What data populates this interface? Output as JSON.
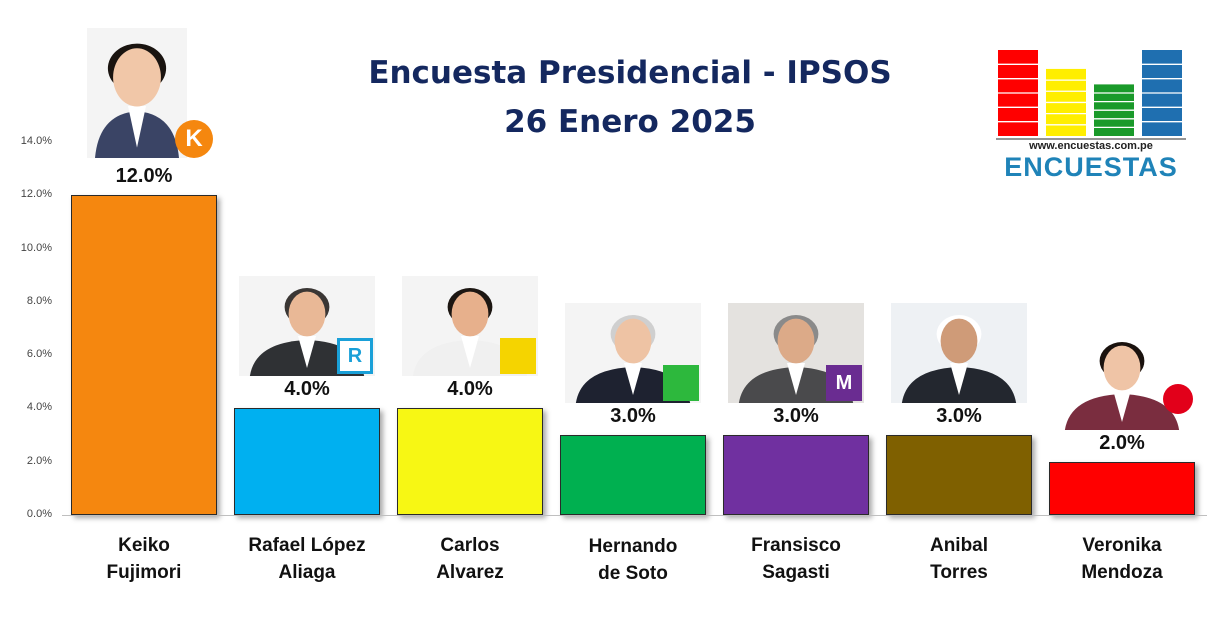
{
  "header": {
    "title_line1": "Encuesta Presidencial - IPSOS",
    "title_line2": "26  Enero 2025"
  },
  "logo": {
    "url": "www.encuestas.com.pe",
    "brand": "ENCUESTAS",
    "bar_colors": [
      "#ff0000",
      "#ffee00",
      "#1a9a2a",
      "#1f6fb0"
    ],
    "bar_levels": [
      1.0,
      0.78,
      0.6,
      1.0
    ]
  },
  "chart_data": {
    "type": "bar",
    "categories": [
      [
        "Keiko",
        "Fujimori"
      ],
      [
        "Rafael López",
        "Aliaga"
      ],
      [
        "Carlos",
        "Alvarez"
      ],
      [
        "Hernando",
        "de Soto"
      ],
      [
        "Fransisco",
        "Sagasti"
      ],
      [
        "Anibal",
        "Torres"
      ],
      [
        "Veronika",
        "Mendoza"
      ]
    ],
    "values": [
      12.0,
      4.0,
      4.0,
      3.0,
      3.0,
      3.0,
      2.0
    ],
    "value_labels": [
      "12.0%",
      "4.0%",
      "4.0%",
      "3.0%",
      "3.0%",
      "3.0%",
      "2.0%"
    ],
    "colors": [
      "#f5870f",
      "#00b0f0",
      "#f7f714",
      "#00b050",
      "#7030a0",
      "#7f6000",
      "#ff0000"
    ],
    "ylim": [
      0,
      14
    ],
    "yticks": [
      "0.0%",
      "2.0%",
      "4.0%",
      "6.0%",
      "8.0%",
      "10.0%",
      "12.0%",
      "14.0%"
    ],
    "grid": false,
    "legend": "none"
  },
  "icons": [
    "candidate-photo-icon",
    "party-logo-icon"
  ],
  "party_logos": [
    {
      "letter": "K",
      "color": "#f5870f"
    },
    {
      "letter": "R",
      "color": "#1aa0d8"
    },
    {
      "letter": "",
      "color": "#f5d400"
    },
    {
      "letter": "",
      "color": "#2db83d"
    },
    {
      "letter": "M",
      "color": "#6a2c91"
    },
    {
      "letter": "",
      "color": ""
    },
    {
      "letter": "",
      "color": "#e2001a"
    }
  ]
}
